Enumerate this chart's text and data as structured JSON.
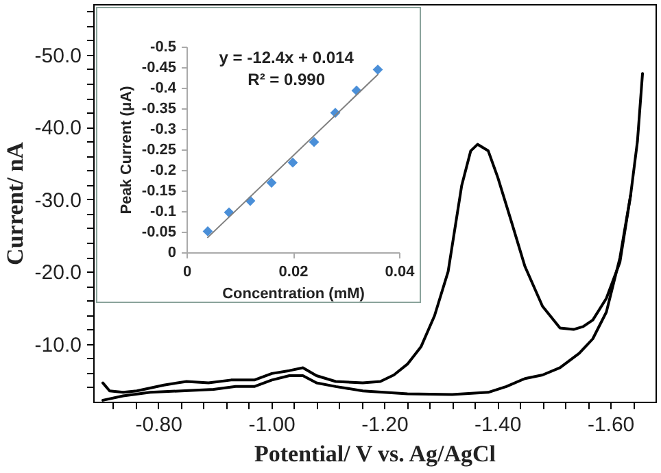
{
  "chart_data": [
    {
      "type": "line",
      "xlabel": "Potential/ V vs. Ag/AgCl",
      "ylabel": "Current/ nA",
      "xlim": [
        -0.685,
        -1.68
      ],
      "ylim": [
        -2,
        -57
      ],
      "xticks": [
        {
          "value": -0.72,
          "label": null
        },
        {
          "value": -0.76,
          "label": null
        },
        {
          "value": -0.8,
          "label": "-0.80"
        },
        {
          "value": -0.84,
          "label": null
        },
        {
          "value": -0.88,
          "label": null
        },
        {
          "value": -0.92,
          "label": null
        },
        {
          "value": -0.96,
          "label": null
        },
        {
          "value": -1.0,
          "label": "-1.00"
        },
        {
          "value": -1.04,
          "label": null
        },
        {
          "value": -1.08,
          "label": null
        },
        {
          "value": -1.12,
          "label": null
        },
        {
          "value": -1.16,
          "label": null
        },
        {
          "value": -1.2,
          "label": "-1.20"
        },
        {
          "value": -1.24,
          "label": null
        },
        {
          "value": -1.28,
          "label": null
        },
        {
          "value": -1.32,
          "label": null
        },
        {
          "value": -1.36,
          "label": null
        },
        {
          "value": -1.4,
          "label": "-1.40"
        },
        {
          "value": -1.44,
          "label": null
        },
        {
          "value": -1.48,
          "label": null
        },
        {
          "value": -1.52,
          "label": null
        },
        {
          "value": -1.56,
          "label": null
        },
        {
          "value": -1.6,
          "label": "-1.60"
        },
        {
          "value": -1.64,
          "label": null
        }
      ],
      "yticks": [
        {
          "value": -4,
          "label": null
        },
        {
          "value": -6,
          "label": null
        },
        {
          "value": -8,
          "label": null
        },
        {
          "value": -10,
          "label": "-10.0"
        },
        {
          "value": -12,
          "label": null
        },
        {
          "value": -14,
          "label": null
        },
        {
          "value": -16,
          "label": null
        },
        {
          "value": -18,
          "label": null
        },
        {
          "value": -20,
          "label": "-20.0"
        },
        {
          "value": -22,
          "label": null
        },
        {
          "value": -24,
          "label": null
        },
        {
          "value": -26,
          "label": null
        },
        {
          "value": -28,
          "label": null
        },
        {
          "value": -30,
          "label": "-30.0"
        },
        {
          "value": -32,
          "label": null
        },
        {
          "value": -34,
          "label": null
        },
        {
          "value": -36,
          "label": null
        },
        {
          "value": -38,
          "label": null
        },
        {
          "value": -40,
          "label": "-40.0"
        },
        {
          "value": -42,
          "label": null
        },
        {
          "value": -44,
          "label": null
        },
        {
          "value": -46,
          "label": null
        },
        {
          "value": -48,
          "label": null
        },
        {
          "value": -50,
          "label": "-50.0"
        },
        {
          "value": -52,
          "label": null
        },
        {
          "value": -54,
          "label": null
        },
        {
          "value": -56,
          "label": null
        }
      ],
      "series": [
        {
          "color": "#000000",
          "x": [
            -0.702,
            -0.714,
            -0.738,
            -0.762,
            -0.786,
            -0.81,
            -0.85,
            -0.889,
            -0.929,
            -0.97,
            -1.001,
            -1.032,
            -1.056,
            -1.08,
            -1.114,
            -1.162,
            -1.193,
            -1.217,
            -1.241,
            -1.265,
            -1.289,
            -1.313,
            -1.337,
            -1.353,
            -1.365,
            -1.384,
            -1.401,
            -1.425,
            -1.449,
            -1.48,
            -1.511,
            -1.535,
            -1.552,
            -1.569,
            -1.593,
            -1.617,
            -1.636,
            -1.648,
            -1.657
          ],
          "values": [
            -4.6,
            -3.5,
            -3.3,
            -3.5,
            -3.9,
            -4.3,
            -4.8,
            -4.6,
            -5.0,
            -5.0,
            -5.9,
            -6.3,
            -6.7,
            -5.6,
            -4.8,
            -4.6,
            -4.8,
            -5.7,
            -7.2,
            -9.6,
            -13.9,
            -20.0,
            -31.9,
            -36.7,
            -37.6,
            -36.7,
            -33.0,
            -26.9,
            -20.7,
            -15.2,
            -12.2,
            -12.0,
            -12.4,
            -13.3,
            -16.3,
            -21.3,
            -30.6,
            -38.0,
            -47.4
          ]
        },
        {
          "color": "#000000",
          "x": [
            -0.702,
            -0.738,
            -0.786,
            -0.841,
            -0.898,
            -0.937,
            -0.97,
            -1.001,
            -1.032,
            -1.056,
            -1.08,
            -1.114,
            -1.162,
            -1.241,
            -1.32,
            -1.384,
            -1.416,
            -1.449,
            -1.48,
            -1.511,
            -1.545,
            -1.569,
            -1.593,
            -1.617,
            -1.636
          ],
          "values": [
            -2.2,
            -2.8,
            -3.3,
            -3.5,
            -3.7,
            -4.1,
            -4.1,
            -5.0,
            -5.6,
            -5.6,
            -4.6,
            -4.1,
            -3.5,
            -3.1,
            -3.0,
            -3.3,
            -4.1,
            -5.2,
            -5.7,
            -6.7,
            -8.7,
            -10.7,
            -14.4,
            -21.9,
            -30.6
          ]
        }
      ]
    },
    {
      "type": "scatter",
      "xlabel": "Concentration (mM)",
      "ylabel": "Peak Current (μA)",
      "annotations": [
        "y = -12.4x + 0.014",
        "R² = 0.990"
      ],
      "xlim": [
        0,
        0.04
      ],
      "ylim": [
        0,
        -0.5
      ],
      "xticks": [
        0,
        0.02,
        0.04
      ],
      "yticks": [
        0,
        -0.05,
        -0.1,
        -0.15,
        -0.2,
        -0.25,
        -0.3,
        -0.35,
        -0.4,
        -0.45,
        -0.5
      ],
      "series": [
        {
          "color": "#4a8fd8",
          "marker": "diamond",
          "x": [
            0.004,
            0.008,
            0.012,
            0.016,
            0.02,
            0.024,
            0.028,
            0.032,
            0.036
          ],
          "values": [
            -0.051,
            -0.097,
            -0.125,
            -0.169,
            -0.218,
            -0.268,
            -0.339,
            -0.393,
            -0.444
          ]
        },
        {
          "type": "line",
          "color": "#808080",
          "x": [
            0.004,
            0.036
          ],
          "values": [
            -0.036,
            -0.432
          ]
        }
      ]
    }
  ]
}
